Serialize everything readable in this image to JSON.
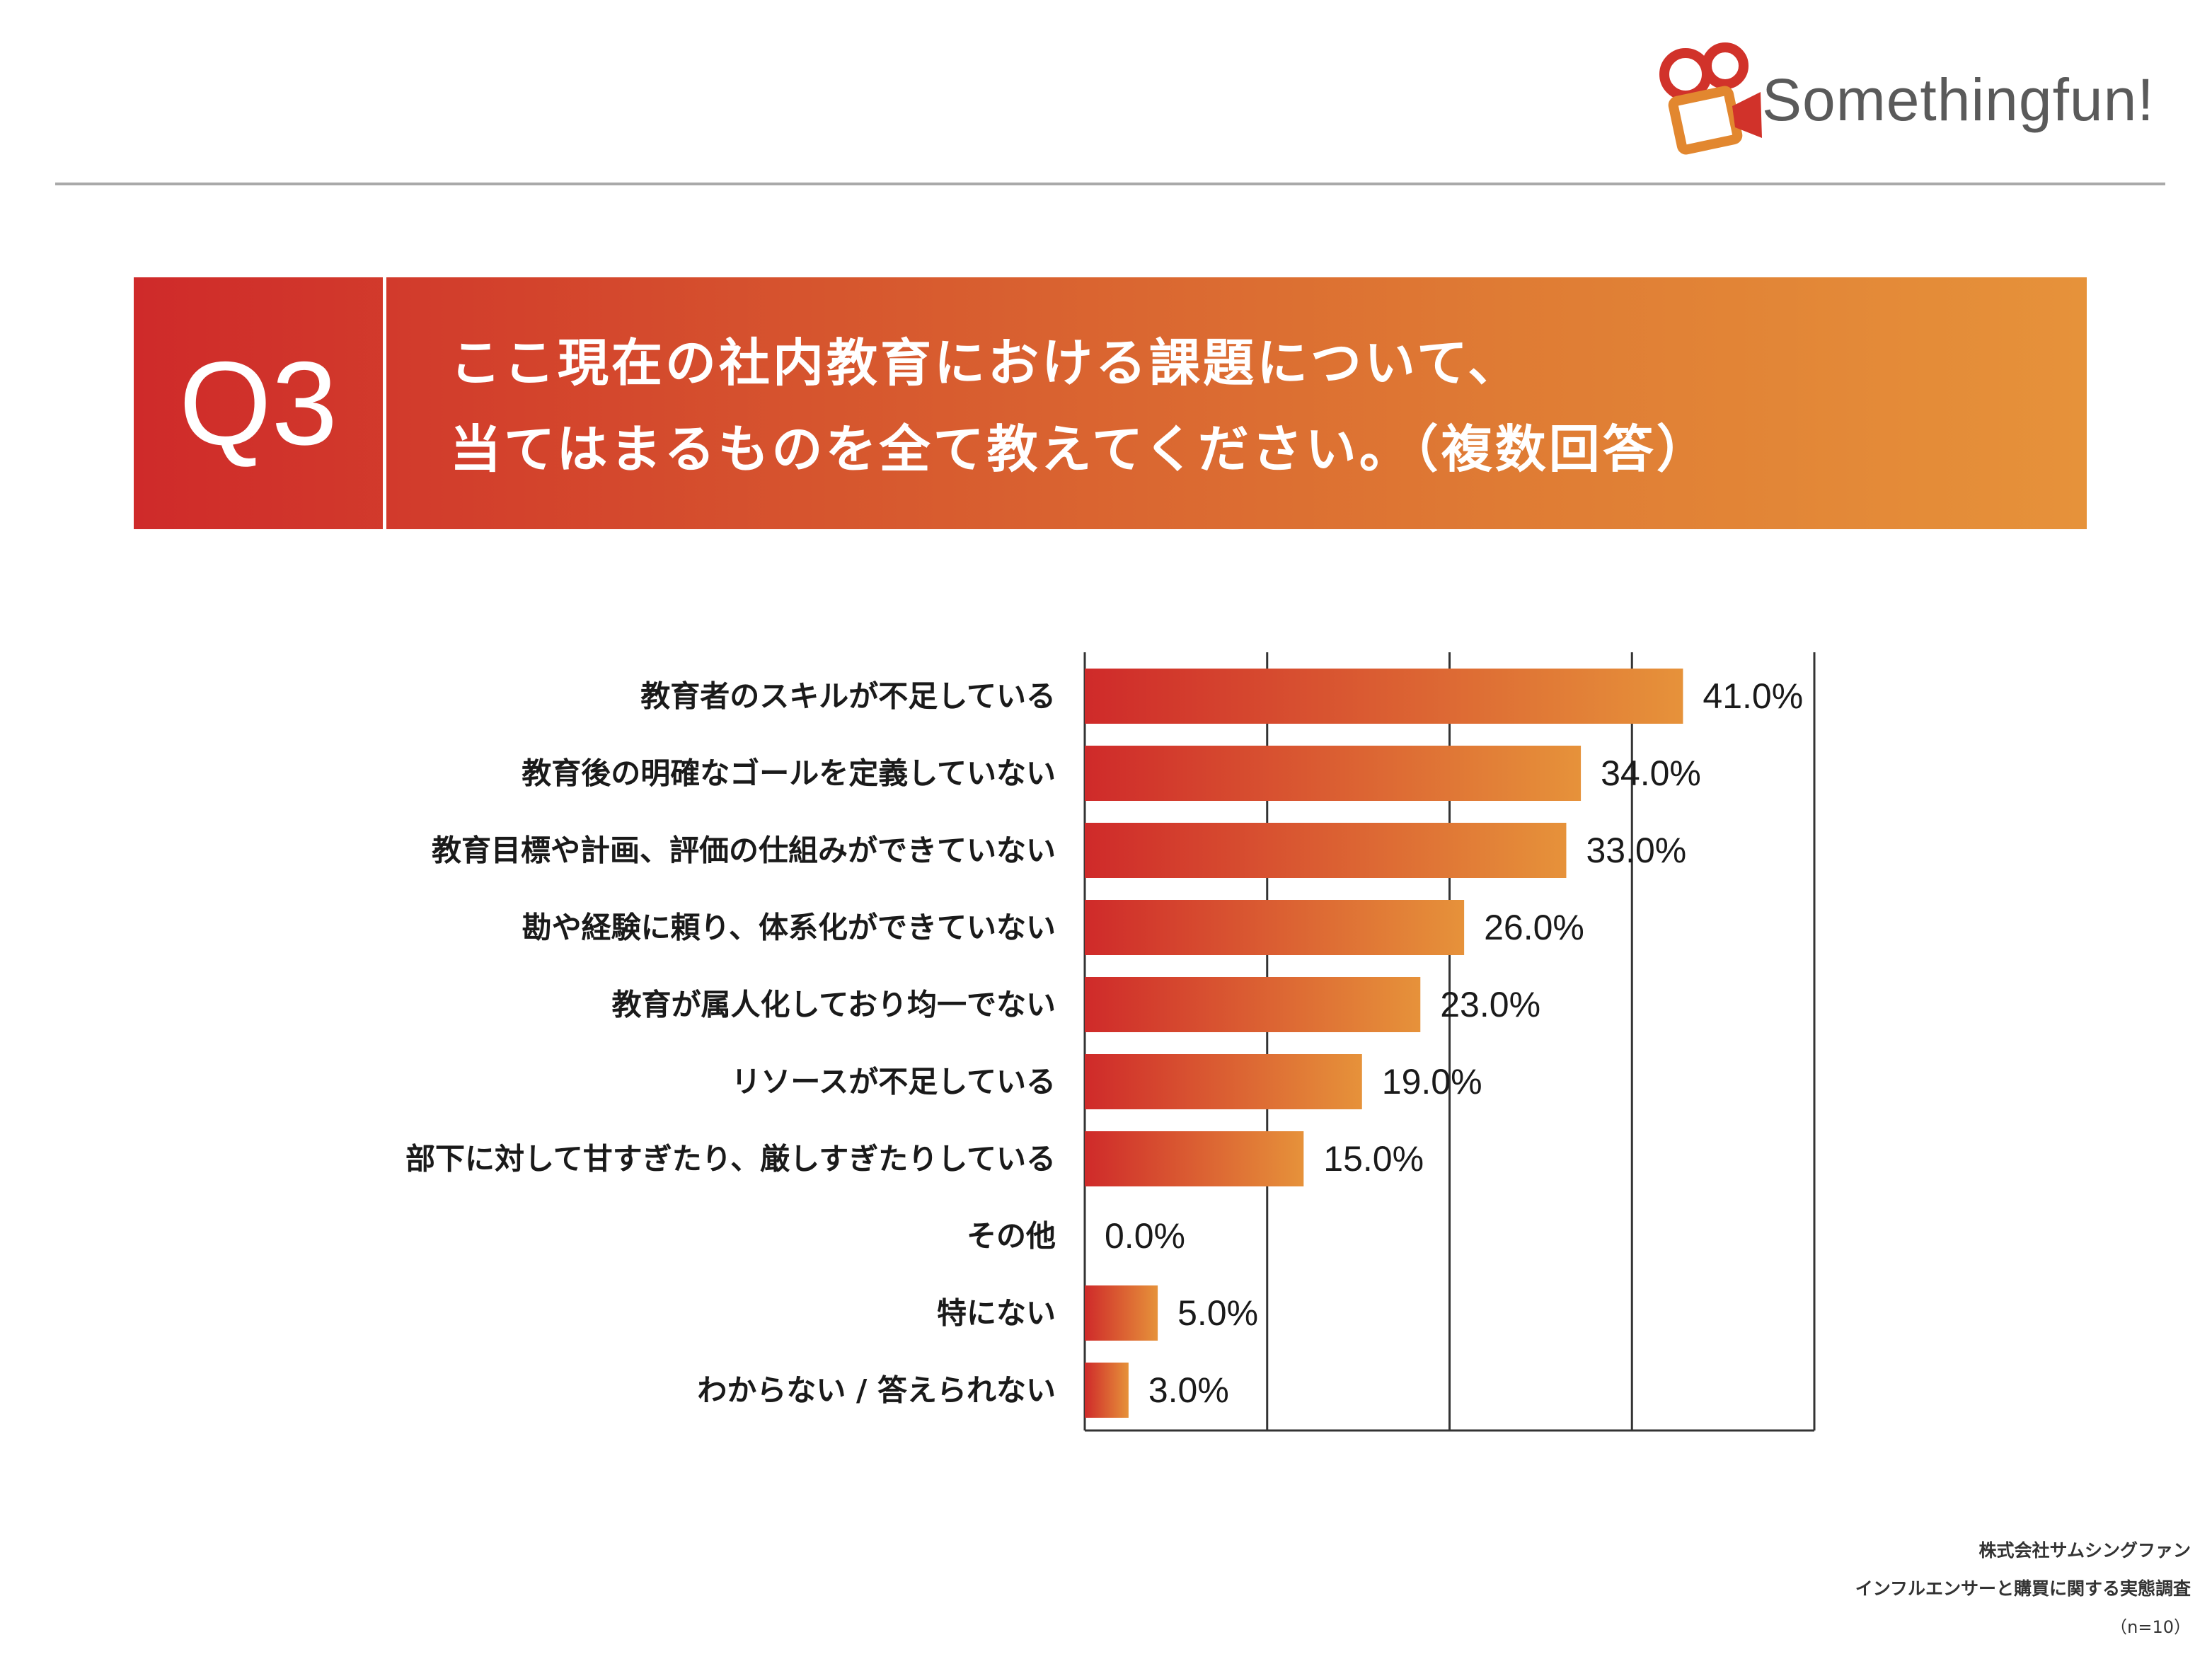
{
  "brand": {
    "name": "Somethingfun!",
    "colors": {
      "red": "#cf2a2a",
      "orange": "#e6923a",
      "gray": "#5a5a5a"
    }
  },
  "question": {
    "number": "Q3",
    "line1": "ここ現在の社内教育における課題について、",
    "line2": "当てはまるものを全て教えてください。（複数回答）"
  },
  "footer": {
    "company": "株式会社サムシングファン",
    "survey": "インフルエンサーと購買に関する実態調査",
    "sample": "（n=10）"
  },
  "chart_data": {
    "type": "bar",
    "orientation": "horizontal",
    "categories": [
      "教育者のスキルが不足している",
      "教育後の明確なゴールを定義していない",
      "教育目標や計画、評価の仕組みができていない",
      "勘や経験に頼り、体系化ができていない",
      "教育が属人化しており均一でない",
      "リソースが不足している",
      "部下に対して甘すぎたり、厳しすぎたりしている",
      "その他",
      "特にない",
      "わからない / 答えられない"
    ],
    "values": [
      41.0,
      34.0,
      33.0,
      26.0,
      23.0,
      19.0,
      15.0,
      0.0,
      5.0,
      3.0
    ],
    "value_labels": [
      "41.0%",
      "34.0%",
      "33.0%",
      "26.0%",
      "23.0%",
      "19.0%",
      "15.0%",
      "0.0%",
      "5.0%",
      "3.0%"
    ],
    "xlim": [
      0,
      50
    ],
    "grid_values": [
      12.5,
      25,
      37.5,
      50
    ],
    "unit": "%",
    "bar_gradient": [
      "#cf2a2a",
      "#e6923a"
    ]
  }
}
